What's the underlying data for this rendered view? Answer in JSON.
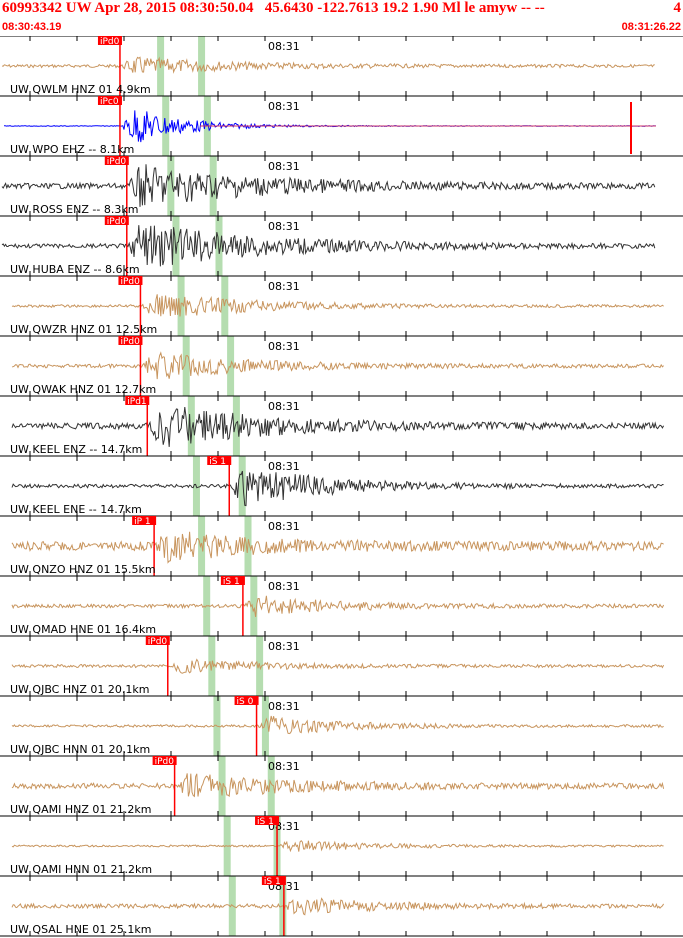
{
  "header": {
    "title": "60993342 UW Apr 28, 2015 08:30:50.04   45.6430 -122.7613 19.2 1.90 Ml le amyw -- --",
    "title_right": "4",
    "start_time": "08:30:43.19",
    "end_time": "08:31:26.22"
  },
  "chart_data": {
    "type": "line",
    "time_tick_label": "08:31",
    "colors": {
      "tan": "#c8955e",
      "dark": "#333333",
      "blue": "#0000ff",
      "pick": "#ff0000",
      "swave": "#b5ddb0"
    },
    "traces": [
      {
        "label": "UW QWLM HNZ 01 4.9km",
        "color": "tan",
        "pick": "iPd0",
        "onset": 0.12,
        "amp": 0.35,
        "noise": 0.25,
        "decay": 0.5
      },
      {
        "label": "UW WPO EHZ -- 8.1km",
        "color": "blue",
        "pick": "iPc0",
        "onset": 0.12,
        "amp": 0.95,
        "noise": 0.05,
        "decay": 0.25
      },
      {
        "label": "UW ROSS ENZ -- 8.3km",
        "color": "dark",
        "pick": "iPd0",
        "onset": 0.13,
        "amp": 0.85,
        "noise": 0.45,
        "decay": 0.6
      },
      {
        "label": "UW HUBA ENZ -- 8.6km",
        "color": "dark",
        "pick": "iPd0",
        "onset": 0.13,
        "amp": 0.95,
        "noise": 0.35,
        "decay": 0.6
      },
      {
        "label": "UW QWZR HNZ 01 12.5km",
        "color": "tan",
        "pick": "iPd0",
        "onset": 0.15,
        "amp": 0.55,
        "noise": 0.22,
        "decay": 0.5
      },
      {
        "label": "UW QWAK HNZ 01 12.7km",
        "color": "tan",
        "pick": "iPd0",
        "onset": 0.15,
        "amp": 0.55,
        "noise": 0.3,
        "decay": 0.5
      },
      {
        "label": "UW KEEL ENZ -- 14.7km",
        "color": "dark",
        "pick": "iPd1",
        "onset": 0.16,
        "amp": 0.9,
        "noise": 0.5,
        "decay": 0.5
      },
      {
        "label": "UW KEEL ENE -- 14.7km",
        "color": "dark",
        "pick": "iS 1",
        "onset": 0.28,
        "amp": 0.9,
        "noise": 0.3,
        "decay": 0.4
      },
      {
        "label": "UW QNZO HNZ 01 15.5km",
        "color": "tan",
        "pick": "iP 1",
        "onset": 0.17,
        "amp": 0.6,
        "noise": 0.75,
        "decay": 0.4
      },
      {
        "label": "UW QMAD HNE 01 16.4km",
        "color": "tan",
        "pick": "iS 1",
        "onset": 0.3,
        "amp": 0.45,
        "noise": 0.3,
        "decay": 0.4
      },
      {
        "label": "UW QJBC HNZ 01 20.1km",
        "color": "tan",
        "pick": "iPd0",
        "onset": 0.19,
        "amp": 0.3,
        "noise": 0.25,
        "decay": 0.4
      },
      {
        "label": "UW QJBC HNN 01 20.1km",
        "color": "tan",
        "pick": "iS 0",
        "onset": 0.32,
        "amp": 0.4,
        "noise": 0.2,
        "decay": 0.4
      },
      {
        "label": "UW QAMI HNZ 01 21.2km",
        "color": "tan",
        "pick": "iPd0",
        "onset": 0.2,
        "amp": 0.5,
        "noise": 0.45,
        "decay": 0.5
      },
      {
        "label": "UW QAMI HNN 01 21.2km",
        "color": "tan",
        "pick": "iS 1",
        "onset": 0.35,
        "amp": 0.25,
        "noise": 0.15,
        "decay": 0.4
      },
      {
        "label": "UW QSAL HNE 01 25.1km",
        "color": "tan",
        "pick": "iS 1",
        "onset": 0.36,
        "amp": 0.35,
        "noise": 0.35,
        "decay": 0.4
      }
    ]
  }
}
